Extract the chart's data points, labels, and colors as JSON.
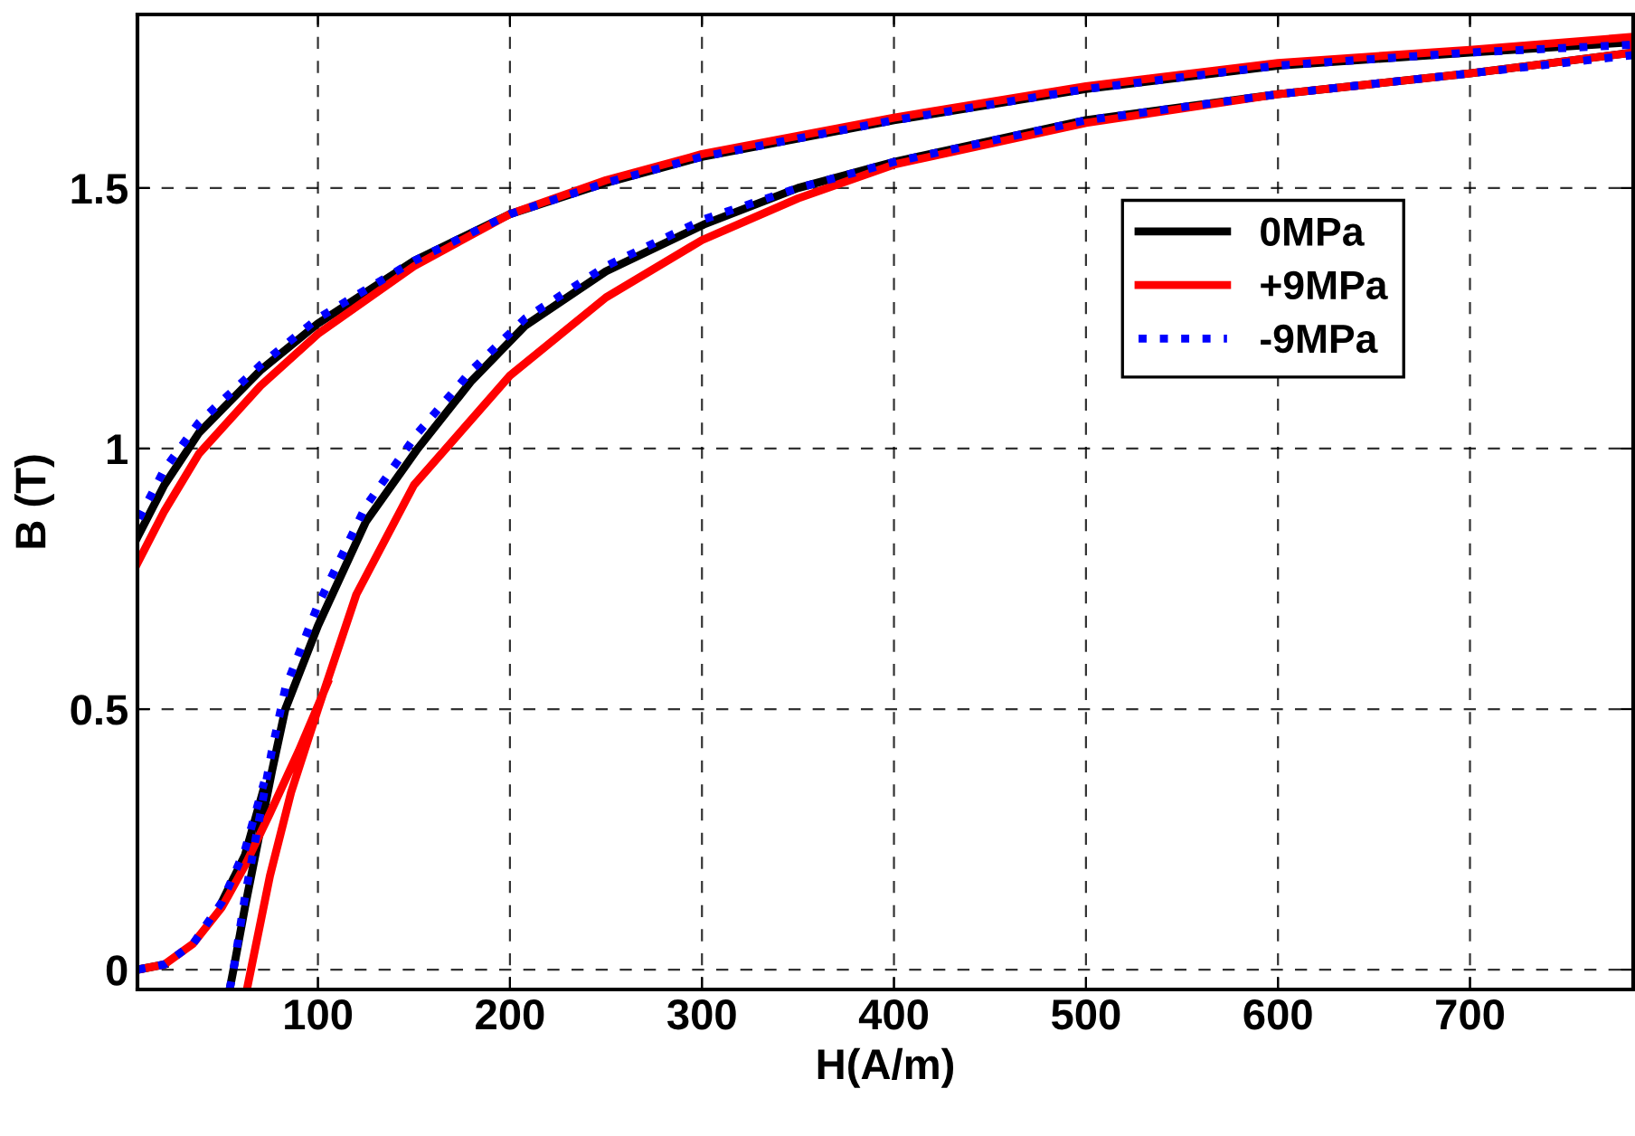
{
  "chart_data": {
    "type": "line",
    "xlabel": "H(A/m)",
    "ylabel": "B (T)",
    "xlim": [
      6,
      785
    ],
    "ylim": [
      -0.038,
      1.833
    ],
    "xticks": [
      100,
      200,
      300,
      400,
      500,
      600,
      700
    ],
    "yticks": [
      0,
      0.5,
      1,
      {
        "value": 1.5,
        "label": "1.5"
      }
    ],
    "grid": true,
    "legend": "top right",
    "series": [
      {
        "name": "0MPa",
        "color": "#000000",
        "line_style": "solid",
        "x": [
          54,
          56,
          62,
          69,
          76,
          83,
          100,
          125,
          152,
          180,
          208,
          250,
          301,
          350,
          400,
          500,
          600,
          700,
          785,
          785,
          700,
          600,
          500,
          400,
          300,
          250,
          200,
          150,
          100,
          70,
          38,
          20,
          6,
          null,
          6,
          20,
          35,
          50,
          62,
          72
        ],
        "values": [
          -0.038,
          0,
          0.12,
          0.25,
          0.38,
          0.5,
          0.66,
          0.86,
          1.0,
          1.13,
          1.236,
          1.34,
          1.43,
          1.5,
          1.55,
          1.63,
          1.68,
          1.72,
          1.76,
          1.78,
          1.76,
          1.735,
          1.69,
          1.63,
          1.56,
          1.51,
          1.45,
          1.36,
          1.24,
          1.15,
          1.03,
          0.93,
          0.83,
          null,
          0,
          0.01,
          null,
          0.13,
          0.22,
          0.35
        ]
      },
      {
        "name": "+9MPa",
        "color": "#ff0000",
        "line_style": "solid",
        "x": [
          63,
          75,
          86,
          100,
          120,
          150,
          200,
          250,
          300,
          350,
          400,
          500,
          600,
          700,
          785,
          785,
          700,
          600,
          500,
          400,
          300,
          250,
          200,
          150,
          100,
          70,
          38,
          20,
          6,
          null,
          6,
          20,
          35,
          50,
          62,
          75,
          90,
          105
        ],
        "values": [
          -0.038,
          0.18,
          0.34,
          0.5,
          0.72,
          0.93,
          1.14,
          1.29,
          1.4,
          1.48,
          1.545,
          1.625,
          1.68,
          1.72,
          1.76,
          1.79,
          1.765,
          1.74,
          1.695,
          1.635,
          1.565,
          1.515,
          1.45,
          1.35,
          1.22,
          1.12,
          0.99,
          0.88,
          0.78,
          null,
          0,
          0.01,
          0.05,
          0.12,
          0.2,
          0.3,
          0.42,
          0.55
        ]
      },
      {
        "name": "-9MPa",
        "color": "#0000ff",
        "line_style": "dotted",
        "x": [
          54,
          56,
          62,
          69,
          76,
          83,
          100,
          125,
          152,
          180,
          208,
          250,
          301,
          350,
          400,
          500,
          600,
          700,
          785,
          785,
          700,
          600,
          500,
          400,
          300,
          250,
          200,
          150,
          100,
          70,
          38,
          20,
          6,
          null,
          6,
          20,
          35,
          50,
          62,
          72
        ],
        "values": [
          -0.038,
          0,
          0.14,
          0.28,
          0.42,
          0.54,
          0.7,
          0.89,
          1.03,
          1.15,
          1.25,
          1.35,
          1.44,
          1.5,
          1.55,
          1.63,
          1.68,
          1.72,
          1.755,
          1.775,
          1.76,
          1.735,
          1.69,
          1.63,
          1.56,
          1.51,
          1.45,
          1.36,
          1.25,
          1.16,
          1.05,
          0.96,
          0.86,
          null,
          0,
          0.01,
          0.05,
          0.13,
          0.23,
          0.36
        ]
      }
    ]
  }
}
